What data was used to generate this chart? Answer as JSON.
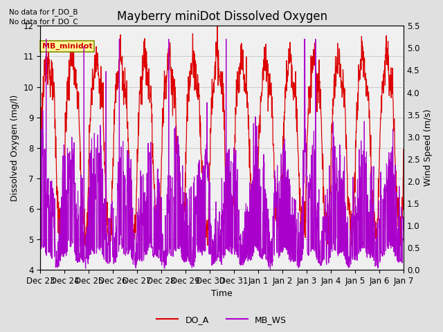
{
  "title": "Mayberry miniDot Dissolved Oxygen",
  "xlabel": "Time",
  "ylabel_left": "Dissolved Oxygen (mg/l)",
  "ylabel_right": "Wind Speed (m/s)",
  "ylim_left": [
    4.0,
    12.0
  ],
  "ylim_right": [
    0.0,
    5.5
  ],
  "yticks_left": [
    4.0,
    5.0,
    6.0,
    7.0,
    8.0,
    9.0,
    10.0,
    11.0,
    12.0
  ],
  "yticks_right": [
    0.0,
    0.5,
    1.0,
    1.5,
    2.0,
    2.5,
    3.0,
    3.5,
    4.0,
    4.5,
    5.0,
    5.5
  ],
  "xtick_labels": [
    "Dec 23",
    "Dec 24",
    "Dec 25",
    "Dec 26",
    "Dec 27",
    "Dec 28",
    "Dec 29",
    "Dec 30",
    "Dec 31",
    "Jan 1",
    "Jan 2",
    "Jan 3",
    "Jan 4",
    "Jan 5",
    "Jan 6",
    "Jan 7"
  ],
  "text_annotations": [
    "No data for f_DO_B",
    "No data for f_DO_C"
  ],
  "legend_box_label": "MB_minidot",
  "legend_box_color": "#cc0000",
  "legend_box_bg": "#ffff99",
  "do_color": "#dd0000",
  "ws_color": "#aa00cc",
  "do_label": "DO_A",
  "ws_label": "MB_WS",
  "bg_color": "#e0e0e0",
  "plot_bg": "#f0f0f0",
  "title_fontsize": 12,
  "label_fontsize": 9,
  "tick_fontsize": 8.5,
  "legend_fontsize": 9,
  "n_points": 1500,
  "do_seed": 123,
  "ws_seed": 456
}
